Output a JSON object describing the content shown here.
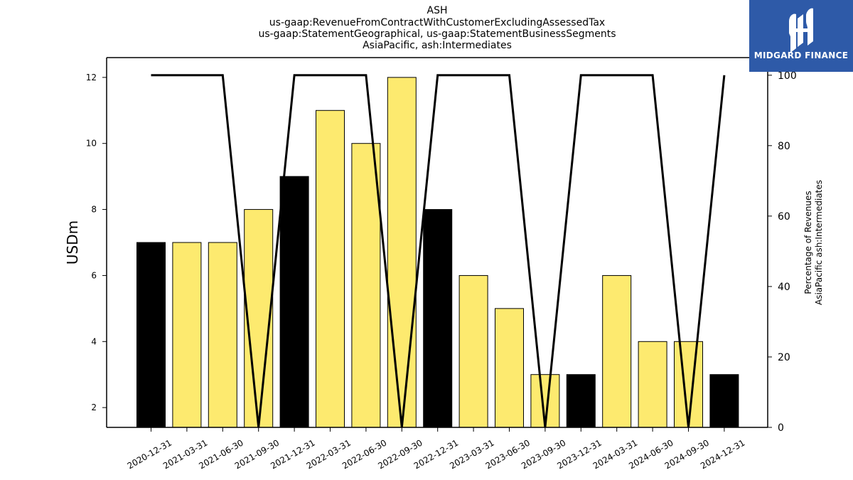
{
  "header": {
    "title_lines": [
      "ASH",
      "us-gaap:RevenueFromContractWithCustomerExcludingAssessedTax",
      "us-gaap:StatementGeographical, us-gaap:StatementBusinessSegments",
      "AsiaPacific, ash:Intermediates"
    ]
  },
  "logo": {
    "text": "MIDGARD FINANCE",
    "icon": "midgard-logo-icon"
  },
  "colors": {
    "bar_yellow": "#fdea6f",
    "bar_black": "#000000",
    "line": "#000000",
    "logo_bg": "#2e5aa8"
  },
  "chart_data": {
    "type": "bar",
    "categories": [
      "2020-12-31",
      "2021-03-31",
      "2021-06-30",
      "2021-09-30",
      "2021-12-31",
      "2022-03-31",
      "2022-06-30",
      "2022-09-30",
      "2022-12-31",
      "2023-03-31",
      "2023-06-30",
      "2023-09-30",
      "2023-12-31",
      "2024-03-31",
      "2024-06-30",
      "2024-09-30",
      "2024-12-31"
    ],
    "series": [
      {
        "values": [
          7,
          7,
          7,
          8,
          9,
          11,
          10,
          12,
          8,
          6,
          5,
          3,
          3,
          6,
          4,
          4,
          3
        ],
        "bar_colors": [
          "black",
          "yellow",
          "yellow",
          "yellow",
          "black",
          "yellow",
          "yellow",
          "yellow",
          "black",
          "yellow",
          "yellow",
          "yellow",
          "black",
          "yellow",
          "yellow",
          "yellow",
          "black"
        ],
        "axis": "left"
      },
      {
        "type": "line",
        "values": [
          100,
          100,
          100,
          0,
          100,
          100,
          100,
          0,
          100,
          100,
          100,
          0,
          100,
          100,
          100,
          0,
          100
        ],
        "axis": "right"
      }
    ],
    "ylabel": "USDm",
    "ylim": [
      1.4,
      12.6
    ],
    "yticks": [
      2,
      4,
      6,
      8,
      10,
      12
    ],
    "y2label_lines": [
      "Percentage of Revenues",
      "AsiaPacific ash:Intermediates"
    ],
    "y2lim": [
      0,
      105
    ],
    "y2ticks": [
      0,
      20,
      40,
      60,
      80,
      100
    ],
    "grid": false,
    "legend": "none"
  }
}
